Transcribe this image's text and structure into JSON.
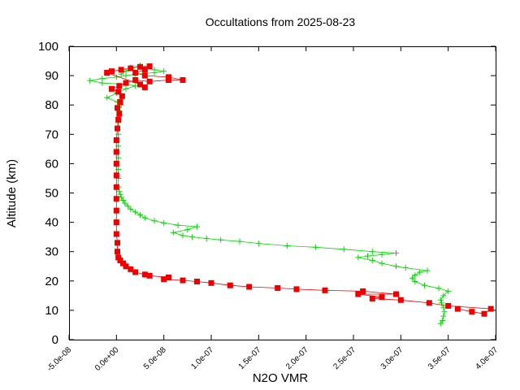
{
  "chart_data": {
    "type": "scatter",
    "title": "Occultations from 2025-08-23",
    "xlabel": "N2O VMR",
    "ylabel": "Altitude (km)",
    "xlim": [
      -5e-08,
      4e-07
    ],
    "ylim": [
      0,
      100
    ],
    "x_tick_labels": [
      "-5.0e-08",
      "0.0e+00",
      "5.0e-08",
      "1.0e-07",
      "1.5e-07",
      "2.0e-07",
      "2.5e-07",
      "3.0e-07",
      "3.5e-07",
      "4.0e-07"
    ],
    "y_tick_labels": [
      "0",
      "10",
      "20",
      "30",
      "40",
      "50",
      "60",
      "70",
      "80",
      "90",
      "100"
    ],
    "grid": false,
    "legend": "none",
    "series": [
      {
        "color": "#00dd00",
        "marker": "plus",
        "points": [
          [
            3.42e-07,
            5.5
          ],
          [
            3.44e-07,
            6.5
          ],
          [
            3.45e-07,
            8.0
          ],
          [
            3.46e-07,
            9.5
          ],
          [
            3.45e-07,
            11.0
          ],
          [
            3.43e-07,
            12.5
          ],
          [
            3.42e-07,
            13.5
          ],
          [
            3.45e-07,
            15.0
          ],
          [
            3.5e-07,
            16.5
          ],
          [
            3.4e-07,
            17.5
          ],
          [
            3.25e-07,
            18.5
          ],
          [
            3.15e-07,
            19.8
          ],
          [
            3.12e-07,
            21.0
          ],
          [
            3.15e-07,
            22.0
          ],
          [
            3.2e-07,
            23.0
          ],
          [
            3.28e-07,
            23.5
          ],
          [
            3.05e-07,
            24.5
          ],
          [
            2.95e-07,
            25.0
          ],
          [
            2.8e-07,
            26.0
          ],
          [
            2.7e-07,
            27.0
          ],
          [
            2.55e-07,
            28.0
          ],
          [
            2.65e-07,
            28.5
          ],
          [
            2.8e-07,
            29.0
          ],
          [
            2.95e-07,
            29.5
          ],
          [
            2.7e-07,
            30.0
          ],
          [
            2.4e-07,
            30.8
          ],
          [
            2.1e-07,
            31.5
          ],
          [
            1.8e-07,
            32.0
          ],
          [
            1.5e-07,
            32.8
          ],
          [
            1.3e-07,
            33.5
          ],
          [
            1.1e-07,
            34.0
          ],
          [
            9.5e-08,
            34.5
          ],
          [
            8e-08,
            35.0
          ],
          [
            7e-08,
            35.5
          ],
          [
            6e-08,
            36.5
          ],
          [
            7.5e-08,
            37.5
          ],
          [
            8.5e-08,
            38.5
          ],
          [
            6.5e-08,
            39.0
          ],
          [
            5e-08,
            39.8
          ],
          [
            4e-08,
            40.5
          ],
          [
            3e-08,
            41.5
          ],
          [
            2.5e-08,
            42.5
          ],
          [
            2e-08,
            43.5
          ],
          [
            1.5e-08,
            44.5
          ],
          [
            1.2e-08,
            45.5
          ],
          [
            9e-09,
            46.5
          ],
          [
            7e-09,
            47.5
          ],
          [
            5e-09,
            48.5
          ],
          [
            4e-09,
            49.5
          ],
          [
            3e-09,
            50.5
          ],
          [
            2e-09,
            52.0
          ],
          [
            2e-09,
            55.0
          ],
          [
            2e-09,
            58.0
          ],
          [
            2e-09,
            62.0
          ],
          [
            2e-09,
            66.0
          ],
          [
            2e-09,
            70.0
          ],
          [
            2e-09,
            74.0
          ],
          [
            3e-09,
            78.0
          ],
          [
            5e-09,
            80.0
          ],
          [
            1e-09,
            81.0
          ],
          [
            -1e-08,
            82.5
          ],
          [
            0,
            84.0
          ],
          [
            1e-08,
            85.5
          ],
          [
            2e-08,
            86.5
          ],
          [
            1e-08,
            87.0
          ],
          [
            -1.5e-08,
            87.5
          ],
          [
            -2.8e-08,
            88.3
          ],
          [
            -1.5e-08,
            89.0
          ],
          [
            0,
            89.5
          ],
          [
            1e-08,
            90.0
          ],
          [
            2e-08,
            90.5
          ],
          [
            4e-08,
            91.0
          ],
          [
            5e-08,
            91.5
          ],
          [
            4e-08,
            92.0
          ],
          [
            3e-08,
            92.5
          ],
          [
            2.5e-08,
            93.5
          ],
          [
            1.5e-08,
            92.8
          ],
          [
            1e-08,
            91.5
          ],
          [
            5e-09,
            90.5
          ]
        ]
      },
      {
        "color": "#ee0000",
        "marker": "square",
        "points": [
          [
            3.6e-07,
            10.5
          ],
          [
            3.75e-07,
            9.5
          ],
          [
            3.88e-07,
            8.8
          ],
          [
            3.95e-07,
            10.5
          ],
          [
            3.5e-07,
            11.5
          ],
          [
            3.3e-07,
            12.5
          ],
          [
            3e-07,
            13.5
          ],
          [
            2.7e-07,
            14.0
          ],
          [
            2.8e-07,
            14.5
          ],
          [
            2.55e-07,
            15.5
          ],
          [
            2.95e-07,
            15.5
          ],
          [
            2.6e-07,
            16.5
          ],
          [
            2.2e-07,
            16.8
          ],
          [
            1.9e-07,
            17.2
          ],
          [
            1.7e-07,
            17.6
          ],
          [
            1.4e-07,
            18.0
          ],
          [
            1.2e-07,
            18.5
          ],
          [
            1e-07,
            19.3
          ],
          [
            8.5e-08,
            19.8
          ],
          [
            7e-08,
            20.2
          ],
          [
            5e-08,
            20.6
          ],
          [
            5.5e-08,
            21.2
          ],
          [
            3.5e-08,
            21.8
          ],
          [
            3e-08,
            22.2
          ],
          [
            2e-08,
            23.0
          ],
          [
            1.5e-08,
            24.0
          ],
          [
            1e-08,
            25.0
          ],
          [
            7e-09,
            26.0
          ],
          [
            4e-09,
            27.0
          ],
          [
            2e-09,
            28.0
          ],
          [
            1e-09,
            30.0
          ],
          [
            1e-09,
            33.0
          ],
          [
            0,
            36.0
          ],
          [
            0,
            40.0
          ],
          [
            0,
            44.0
          ],
          [
            0,
            48.0
          ],
          [
            0,
            52.0
          ],
          [
            0,
            56.0
          ],
          [
            0,
            60.0
          ],
          [
            0,
            64.0
          ],
          [
            0,
            68.0
          ],
          [
            1e-09,
            72.0
          ],
          [
            2e-09,
            75.0
          ],
          [
            3e-09,
            77.0
          ],
          [
            1e-09,
            79.0
          ],
          [
            4e-09,
            81.0
          ],
          [
            6e-09,
            83.0
          ],
          [
            2e-09,
            84.5
          ],
          [
            -5e-09,
            85.5
          ],
          [
            3e-09,
            86.5
          ],
          [
            1e-08,
            87.5
          ],
          [
            2e-08,
            88.5
          ],
          [
            3.5e-08,
            88.0
          ],
          [
            5.5e-08,
            88.5
          ],
          [
            7e-08,
            88.5
          ],
          [
            5.5e-08,
            89.5
          ],
          [
            3e-08,
            90.0
          ],
          [
            2e-08,
            91.0
          ],
          [
            3e-08,
            92.0
          ],
          [
            3.5e-08,
            93.2
          ],
          [
            2.5e-08,
            93.0
          ],
          [
            1.5e-08,
            92.5
          ],
          [
            5e-09,
            92.0
          ],
          [
            -5e-09,
            91.5
          ],
          [
            -1e-08,
            91.0
          ],
          [
            2.5e-08,
            87.0
          ],
          [
            3e-08,
            86.0
          ]
        ]
      }
    ]
  }
}
